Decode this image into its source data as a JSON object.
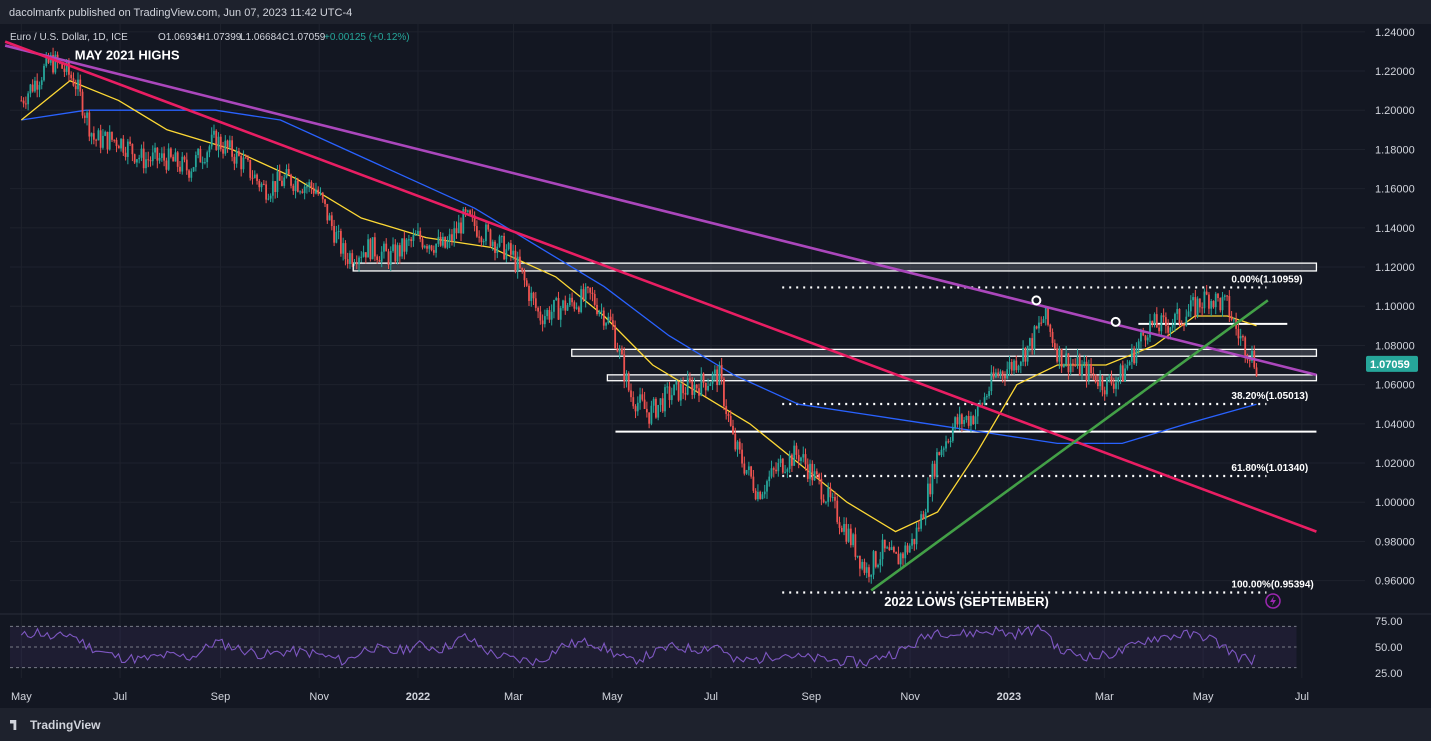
{
  "header": {
    "published": "dacolmanfx published on TradingView.com, Jun 07, 2023 11:42 UTC-4"
  },
  "footer": {
    "brand": "TradingView"
  },
  "chart_data": {
    "type": "line",
    "symbol_line": "Euro / U.S. Dollar, 1D, ICE",
    "ohlc": {
      "o": "O1.06934",
      "h": "H1.07399",
      "l": "L1.06684",
      "c": "C1.07059",
      "chg": "+0.00125 (+0.12%)"
    },
    "last_price": "1.07059",
    "ylim": [
      0.944,
      1.244
    ],
    "y_ticks": [
      "1.24000",
      "1.22000",
      "1.20000",
      "1.18000",
      "1.16000",
      "1.14000",
      "1.12000",
      "1.10000",
      "1.08000",
      "1.06000",
      "1.04000",
      "1.02000",
      "1.00000",
      "0.98000",
      "0.96000"
    ],
    "x_ticks": [
      {
        "label": "May",
        "d": 0
      },
      {
        "label": "Jul",
        "d": 61
      },
      {
        "label": "Sep",
        "d": 123
      },
      {
        "label": "Nov",
        "d": 184
      },
      {
        "label": "2022",
        "d": 245
      },
      {
        "label": "Mar",
        "d": 304
      },
      {
        "label": "May",
        "d": 365
      },
      {
        "label": "Jul",
        "d": 426
      },
      {
        "label": "Sep",
        "d": 488
      },
      {
        "label": "Nov",
        "d": 549
      },
      {
        "label": "2023",
        "d": 610
      },
      {
        "label": "Mar",
        "d": 669
      },
      {
        "label": "May",
        "d": 730
      },
      {
        "label": "Jul",
        "d": 791
      }
    ],
    "x_unit": "days since 2021-05-01",
    "price_path": [
      [
        0,
        1.205
      ],
      [
        18,
        1.225
      ],
      [
        25,
        1.222
      ],
      [
        33,
        1.215
      ],
      [
        45,
        1.185
      ],
      [
        60,
        1.185
      ],
      [
        75,
        1.175
      ],
      [
        90,
        1.175
      ],
      [
        103,
        1.17
      ],
      [
        120,
        1.185
      ],
      [
        135,
        1.175
      ],
      [
        150,
        1.16
      ],
      [
        165,
        1.165
      ],
      [
        182,
        1.16
      ],
      [
        200,
        1.125
      ],
      [
        215,
        1.13
      ],
      [
        228,
        1.125
      ],
      [
        245,
        1.135
      ],
      [
        262,
        1.13
      ],
      [
        274,
        1.145
      ],
      [
        290,
        1.135
      ],
      [
        304,
        1.125
      ],
      [
        320,
        1.095
      ],
      [
        335,
        1.1
      ],
      [
        352,
        1.105
      ],
      [
        365,
        1.09
      ],
      [
        376,
        1.055
      ],
      [
        388,
        1.045
      ],
      [
        400,
        1.055
      ],
      [
        418,
        1.06
      ],
      [
        431,
        1.065
      ],
      [
        440,
        1.03
      ],
      [
        455,
        1.005
      ],
      [
        470,
        1.02
      ],
      [
        480,
        1.025
      ],
      [
        496,
        1.005
      ],
      [
        510,
        0.985
      ],
      [
        522,
        0.965
      ],
      [
        532,
        0.975
      ],
      [
        540,
        0.97
      ],
      [
        551,
        0.98
      ],
      [
        556,
        0.992
      ],
      [
        566,
        1.025
      ],
      [
        577,
        1.04
      ],
      [
        590,
        1.045
      ],
      [
        602,
        1.065
      ],
      [
        612,
        1.07
      ],
      [
        623,
        1.08
      ],
      [
        632,
        1.095
      ],
      [
        641,
        1.075
      ],
      [
        650,
        1.07
      ],
      [
        662,
        1.065
      ],
      [
        670,
        1.06
      ],
      [
        680,
        1.065
      ],
      [
        696,
        1.09
      ],
      [
        706,
        1.09
      ],
      [
        718,
        1.095
      ],
      [
        733,
        1.105
      ],
      [
        745,
        1.1
      ],
      [
        752,
        1.085
      ],
      [
        760,
        1.075
      ],
      [
        763,
        1.07
      ]
    ],
    "ma_50": [
      [
        0,
        1.195
      ],
      [
        30,
        1.215
      ],
      [
        60,
        1.205
      ],
      [
        90,
        1.19
      ],
      [
        130,
        1.18
      ],
      [
        170,
        1.165
      ],
      [
        210,
        1.145
      ],
      [
        250,
        1.135
      ],
      [
        290,
        1.13
      ],
      [
        330,
        1.115
      ],
      [
        360,
        1.095
      ],
      [
        390,
        1.07
      ],
      [
        420,
        1.055
      ],
      [
        450,
        1.04
      ],
      [
        480,
        1.02
      ],
      [
        510,
        1.0
      ],
      [
        540,
        0.985
      ],
      [
        566,
        0.995
      ],
      [
        590,
        1.025
      ],
      [
        615,
        1.06
      ],
      [
        640,
        1.07
      ],
      [
        670,
        1.07
      ],
      [
        700,
        1.08
      ],
      [
        725,
        1.095
      ],
      [
        745,
        1.095
      ],
      [
        763,
        1.09
      ]
    ],
    "ma_200": [
      [
        0,
        1.195
      ],
      [
        40,
        1.2
      ],
      [
        80,
        1.2
      ],
      [
        120,
        1.2
      ],
      [
        160,
        1.195
      ],
      [
        200,
        1.18
      ],
      [
        240,
        1.165
      ],
      [
        280,
        1.15
      ],
      [
        320,
        1.13
      ],
      [
        360,
        1.11
      ],
      [
        400,
        1.085
      ],
      [
        440,
        1.065
      ],
      [
        480,
        1.05
      ],
      [
        520,
        1.045
      ],
      [
        560,
        1.04
      ],
      [
        600,
        1.035
      ],
      [
        640,
        1.03
      ],
      [
        680,
        1.03
      ],
      [
        720,
        1.04
      ],
      [
        763,
        1.05
      ]
    ],
    "trendlines": [
      {
        "name": "purple-downtrend",
        "color": "#ab47bc",
        "from": [
          -10,
          1.233
        ],
        "to": [
          800,
          1.065
        ]
      },
      {
        "name": "red-downtrend",
        "color": "#e91e63",
        "from": [
          -10,
          1.235
        ],
        "to": [
          800,
          0.985
        ]
      },
      {
        "name": "green-uptrend",
        "color": "#43a047",
        "from": [
          525,
          0.955
        ],
        "to": [
          770,
          1.103
        ]
      }
    ],
    "levels": [
      {
        "name": "band-1.12",
        "y1": 1.118,
        "y2": 1.122,
        "from": 205,
        "to": 800,
        "style": "box"
      },
      {
        "name": "band-1.077",
        "y1": 1.0745,
        "y2": 1.078,
        "from": 340,
        "to": 800,
        "style": "box"
      },
      {
        "name": "band-1.063",
        "y1": 1.062,
        "y2": 1.065,
        "from": 362,
        "to": 800,
        "style": "box"
      },
      {
        "name": "line-1.091",
        "y": 1.091,
        "from": 690,
        "to": 782,
        "style": "solid"
      },
      {
        "name": "line-1.036",
        "y": 1.036,
        "from": 367,
        "to": 800,
        "style": "solid"
      }
    ],
    "fibonacci": [
      {
        "label": "0.00%(1.10959)",
        "y": 1.10959
      },
      {
        "label": "38.20%(1.05013)",
        "y": 1.05013
      },
      {
        "label": "61.80%(1.01340)",
        "y": 1.0134
      },
      {
        "label": "100.00%(0.95394)",
        "y": 0.95394
      }
    ],
    "fib_from": 470,
    "fib_to": 800,
    "touch_points": [
      [
        627,
        1.103
      ],
      [
        676,
        1.092
      ]
    ],
    "annotations": [
      {
        "text": "MAY 2021 HIGHS",
        "d": 33,
        "y": 1.226
      },
      {
        "text": "2022 LOWS (SEPTEMBER)",
        "d": 533,
        "y": 0.947
      }
    ],
    "rsi": {
      "ylim": [
        20,
        80
      ],
      "ticks": [
        "75.00",
        "50.00",
        "25.00"
      ],
      "band": [
        30,
        70
      ],
      "path": [
        [
          0,
          60
        ],
        [
          10,
          65
        ],
        [
          20,
          58
        ],
        [
          30,
          63
        ],
        [
          40,
          52
        ],
        [
          50,
          45
        ],
        [
          60,
          40
        ],
        [
          75,
          38
        ],
        [
          90,
          42
        ],
        [
          105,
          40
        ],
        [
          120,
          55
        ],
        [
          135,
          48
        ],
        [
          150,
          42
        ],
        [
          165,
          46
        ],
        [
          180,
          44
        ],
        [
          200,
          36
        ],
        [
          215,
          50
        ],
        [
          230,
          45
        ],
        [
          245,
          52
        ],
        [
          260,
          48
        ],
        [
          274,
          60
        ],
        [
          290,
          44
        ],
        [
          304,
          38
        ],
        [
          320,
          36
        ],
        [
          335,
          52
        ],
        [
          352,
          55
        ],
        [
          365,
          45
        ],
        [
          376,
          36
        ],
        [
          388,
          42
        ],
        [
          400,
          50
        ],
        [
          418,
          48
        ],
        [
          431,
          52
        ],
        [
          440,
          36
        ],
        [
          455,
          38
        ],
        [
          470,
          44
        ],
        [
          480,
          40
        ],
        [
          496,
          38
        ],
        [
          510,
          36
        ],
        [
          522,
          35
        ],
        [
          532,
          42
        ],
        [
          540,
          44
        ],
        [
          551,
          52
        ],
        [
          556,
          58
        ],
        [
          566,
          66
        ],
        [
          577,
          62
        ],
        [
          590,
          64
        ],
        [
          602,
          66
        ],
        [
          612,
          62
        ],
        [
          623,
          66
        ],
        [
          632,
          68
        ],
        [
          641,
          46
        ],
        [
          650,
          44
        ],
        [
          662,
          40
        ],
        [
          670,
          42
        ],
        [
          680,
          46
        ],
        [
          696,
          58
        ],
        [
          706,
          60
        ],
        [
          718,
          62
        ],
        [
          733,
          60
        ],
        [
          745,
          48
        ],
        [
          752,
          40
        ],
        [
          760,
          38
        ],
        [
          763,
          40
        ]
      ]
    }
  }
}
